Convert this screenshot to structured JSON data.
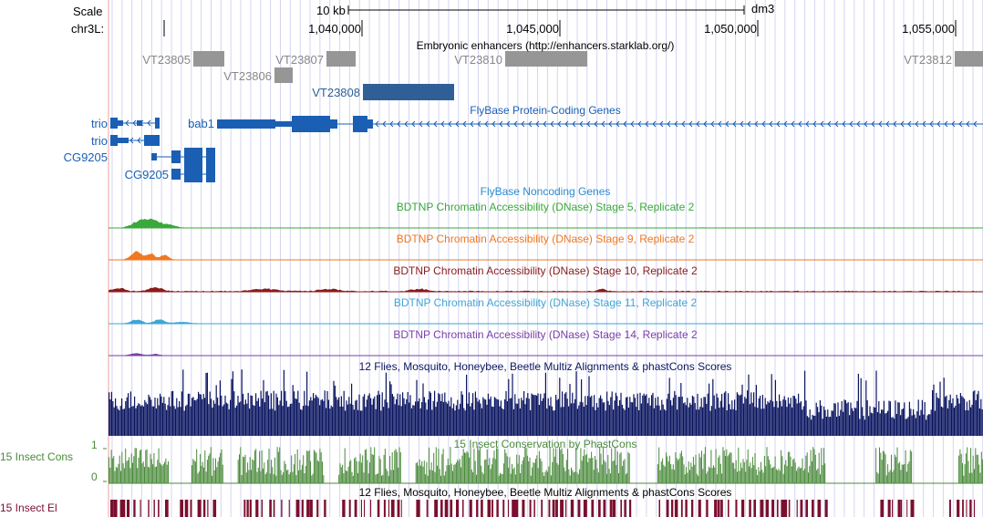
{
  "header": {
    "scale_label": "Scale",
    "scale_bar_value": "10 kb",
    "assembly": "dm3",
    "chrom_label": "chr3L:",
    "positions": [
      "1,040,000",
      "1,045,000",
      "1,050,000",
      "1,055,000"
    ]
  },
  "tracks": {
    "enhancers": {
      "title": "Embryonic enhancers (http://enhancers.starklab.org/)",
      "items": [
        "VT23805",
        "VT23806",
        "VT23807",
        "VT23808",
        "VT23810",
        "VT23812"
      ]
    },
    "protein_coding": {
      "title": "FlyBase Protein-Coding Genes",
      "genes": [
        "trio",
        "trio",
        "CG9205",
        "CG9205",
        "bab1"
      ]
    },
    "noncoding": {
      "title": "FlyBase Noncoding Genes"
    },
    "dnase": [
      {
        "title": "BDTNP Chromatin Accessibility (DNase) Stage 5, Replicate 2",
        "color": "#3aa83a"
      },
      {
        "title": "BDTNP Chromatin Accessibility (DNase) Stage 9, Replicate 2",
        "color": "#f07820"
      },
      {
        "title": "BDTNP Chromatin Accessibility (DNase) Stage 10, Replicate 2",
        "color": "#8b1a1a"
      },
      {
        "title": "BDTNP Chromatin Accessibility (DNase) Stage 11, Replicate 2",
        "color": "#3ea6d6"
      },
      {
        "title": "BDTNP Chromatin Accessibility (DNase) Stage 14, Replicate 2",
        "color": "#7b3fa8"
      }
    ],
    "multiz": {
      "title": "12 Flies, Mosquito, Honeybee, Beetle Multiz Alignments & phastCons Scores",
      "color": "#0a1560"
    },
    "phastcons": {
      "title": "15 Insect Conservation by PhastCons",
      "side_label": "15 Insect Cons",
      "axis_max": "1",
      "axis_min": "0",
      "color": "#4a8a3a"
    },
    "elements": {
      "title": "12 Flies, Mosquito, Honeybee, Beetle Multiz Alignments & phastCons Scores",
      "side_label": "15 Insect El",
      "color": "#7a0f2e"
    }
  },
  "colors": {
    "gene_blue": "#1a5fb4",
    "enhancer_gray": "#969696",
    "enhancer_highlight": "#2f5f96",
    "grid_line": "#c8c8f0",
    "left_guide": "#f0a0a0",
    "gray_text": "#888888",
    "noncoding_blue": "#2a8ad0"
  }
}
